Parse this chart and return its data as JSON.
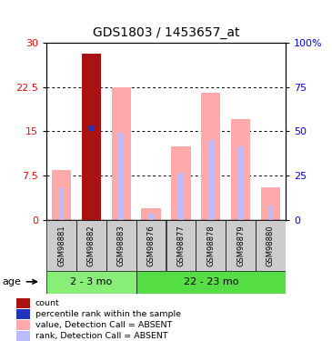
{
  "title": "GDS1803 / 1453657_at",
  "samples": [
    "GSM98881",
    "GSM98882",
    "GSM98883",
    "GSM98876",
    "GSM98877",
    "GSM98878",
    "GSM98879",
    "GSM98880"
  ],
  "groups": [
    "2 - 3 mo",
    "2 - 3 mo",
    "2 - 3 mo",
    "22 - 23 mo",
    "22 - 23 mo",
    "22 - 23 mo",
    "22 - 23 mo",
    "22 - 23 mo"
  ],
  "value_absent": [
    8.5,
    0.0,
    22.5,
    2.0,
    12.5,
    21.5,
    17.0,
    5.5
  ],
  "rank_absent": [
    5.5,
    0.0,
    14.8,
    1.0,
    8.0,
    13.5,
    12.5,
    2.5
  ],
  "count_bar": [
    0.0,
    28.2,
    0.0,
    0.0,
    0.0,
    0.0,
    0.0,
    0.0
  ],
  "percentile_rank": [
    0.0,
    15.5,
    0.0,
    0.0,
    0.0,
    0.0,
    0.0,
    0.0
  ],
  "ylim": [
    0,
    30
  ],
  "yticks_left": [
    0,
    7.5,
    15,
    22.5,
    30
  ],
  "yticks_right": [
    0,
    25,
    50,
    75,
    100
  ],
  "color_count": "#aa1111",
  "color_percentile": "#2233bb",
  "color_value_absent": "#ffaaaa",
  "color_rank_absent": "#bbbbff",
  "group_color_1": "#88ee77",
  "group_color_2": "#55dd44",
  "group1_label": "2 - 3 mo",
  "group2_label": "22 - 23 mo",
  "group1_count": 3,
  "legend_labels": [
    "count",
    "percentile rank within the sample",
    "value, Detection Call = ABSENT",
    "rank, Detection Call = ABSENT"
  ]
}
